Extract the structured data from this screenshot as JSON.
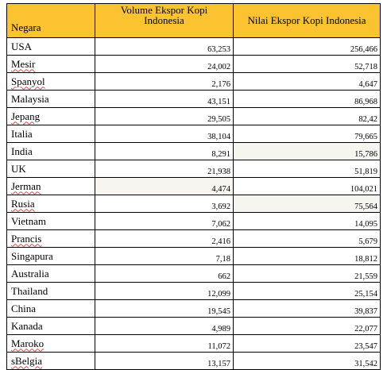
{
  "table": {
    "headers": {
      "country": "Negara",
      "volume_line1": "Volume Ekspor Kopi",
      "volume_line2": "Indonesia",
      "value": "Nilai Ekspor Kopi Indonesia"
    },
    "rows": [
      {
        "country": "USA",
        "volume": "63,253",
        "value": "256,466"
      },
      {
        "country": "Mesir",
        "volume": "24,002",
        "value": "52,718"
      },
      {
        "country": "Spanyol",
        "volume": "2,176",
        "value": "4,647"
      },
      {
        "country": "Malaysia",
        "volume": "43,151",
        "value": "86,968"
      },
      {
        "country": "Jepang",
        "volume": "29,505",
        "value": "82,42"
      },
      {
        "country": "Italia",
        "volume": "38,104",
        "value": "79,665"
      },
      {
        "country": "India",
        "volume": "8,291",
        "value": "15,786"
      },
      {
        "country": "UK",
        "volume": "21,938",
        "value": "51,819"
      },
      {
        "country": "Jerman",
        "volume": "4,474",
        "value": "104,021"
      },
      {
        "country": "Rusia",
        "volume": "3,692",
        "value": "75,564"
      },
      {
        "country": "Vietnam",
        "volume": "7,062",
        "value": "14,095"
      },
      {
        "country": "Prancis",
        "volume": "2,416",
        "value": "5,679"
      },
      {
        "country": "Singapura",
        "volume": "7,18",
        "value": "18,812"
      },
      {
        "country": "Australia",
        "volume": "662",
        "value": "21,559"
      },
      {
        "country": "Thailand",
        "volume": "12,099",
        "value": "25,154"
      },
      {
        "country": "China",
        "volume": "19,545",
        "value": "39,837"
      },
      {
        "country": "Kanada",
        "volume": "4,989",
        "value": "22,077"
      },
      {
        "country": "Maroko",
        "volume": "11,072",
        "value": "23,547"
      },
      {
        "country": "sBelgia",
        "volume": "13,157",
        "value": "31,542"
      }
    ]
  }
}
